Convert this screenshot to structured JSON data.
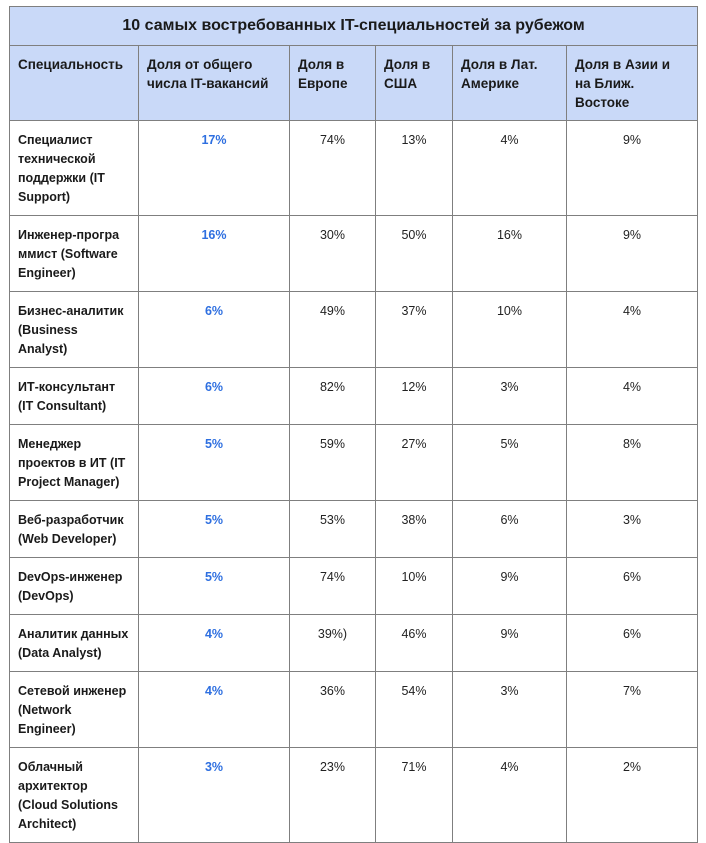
{
  "title": "10 самых востребованных IT-специальностей за рубежом",
  "columns": [
    "Специальность",
    "Доля от общего числа IT-вакансий",
    "Доля в Европе",
    "Доля в США",
    "Доля в Лат. Америке",
    "Доля в Азии и на Ближ. Востоке"
  ],
  "rows": [
    {
      "specialty": "Специалист технической поддержки (IT Support)",
      "share": "17%",
      "europe": "74%",
      "usa": "13%",
      "latam": "4%",
      "asia": "9%"
    },
    {
      "specialty": "Инженер-програ ммист (Software Engineer)",
      "share": "16%",
      "europe": "30%",
      "usa": "50%",
      "latam": "16%",
      "asia": "9%"
    },
    {
      "specialty": "Бизнес-аналитик (Business Analyst)",
      "share": "6%",
      "europe": "49%",
      "usa": "37%",
      "latam": "10%",
      "asia": "4%"
    },
    {
      "specialty": "ИТ-консультант (IT Consultant)",
      "share": "6%",
      "europe": "82%",
      "usa": "12%",
      "latam": "3%",
      "asia": "4%"
    },
    {
      "specialty": "Менеджер проектов в ИТ (IT Project Manager)",
      "share": "5%",
      "europe": "59%",
      "usa": "27%",
      "latam": "5%",
      "asia": "8%"
    },
    {
      "specialty": "Веб-разработчик (Web Developer)",
      "share": "5%",
      "europe": "53%",
      "usa": "38%",
      "latam": "6%",
      "asia": "3%"
    },
    {
      "specialty": "DevOps-инженер (DevOps)",
      "share": "5%",
      "europe": "74%",
      "usa": "10%",
      "latam": "9%",
      "asia": "6%"
    },
    {
      "specialty": "Аналитик данных (Data Analyst)",
      "share": "4%",
      "europe": "39%)",
      "usa": "46%",
      "latam": "9%",
      "asia": "6%"
    },
    {
      "specialty": "Сетевой инженер (Network Engineer)",
      "share": "4%",
      "europe": "36%",
      "usa": "54%",
      "latam": "3%",
      "asia": "7%"
    },
    {
      "specialty": "Облачный архитектор (Cloud Solutions Architect)",
      "share": "3%",
      "europe": "23%",
      "usa": "71%",
      "latam": "4%",
      "asia": "2%"
    }
  ],
  "colors": {
    "header_bg": "#c9d9f8",
    "accent": "#2e6fe0",
    "border": "#7f7f7f"
  }
}
